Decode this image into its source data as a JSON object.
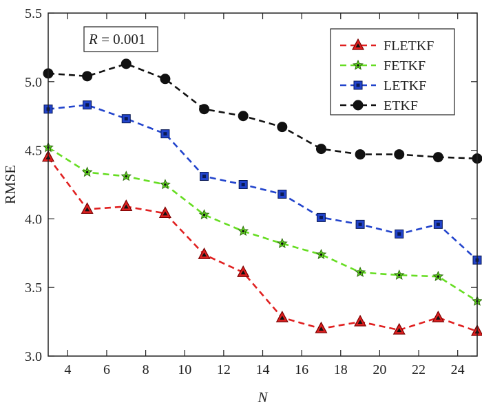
{
  "chart_data": {
    "type": "line",
    "xlabel": "N",
    "ylabel": "RMSE",
    "xlim": [
      3,
      25
    ],
    "ylim": [
      3.0,
      5.5
    ],
    "xticks": [
      4,
      6,
      8,
      10,
      12,
      14,
      16,
      18,
      20,
      22,
      24
    ],
    "yticks": [
      3.0,
      3.5,
      4.0,
      4.5,
      5.0,
      5.5
    ],
    "ytick_labels": [
      "3.0",
      "3.5",
      "4.0",
      "4.5",
      "5.0",
      "5.5"
    ],
    "annotation": {
      "var": "R",
      "eq": " = 0.001"
    },
    "legend_position": "top-right",
    "x": [
      3,
      5,
      7,
      9,
      11,
      13,
      15,
      17,
      19,
      21,
      23,
      25
    ],
    "series": [
      {
        "name": "FLETKF",
        "color": "#e02020",
        "marker": "triangle",
        "values": [
          4.45,
          4.07,
          4.09,
          4.04,
          3.74,
          3.61,
          3.28,
          3.2,
          3.25,
          3.19,
          3.28,
          3.18
        ]
      },
      {
        "name": "FETKF",
        "color": "#66dd22",
        "marker": "star",
        "values": [
          4.52,
          4.34,
          4.31,
          4.25,
          4.03,
          3.91,
          3.82,
          3.74,
          3.61,
          3.59,
          3.58,
          3.4
        ]
      },
      {
        "name": "LETKF",
        "color": "#2244cc",
        "marker": "square",
        "values": [
          4.8,
          4.83,
          4.73,
          4.62,
          4.31,
          4.25,
          4.18,
          4.01,
          3.96,
          3.89,
          3.96,
          3.7
        ]
      },
      {
        "name": "ETKF",
        "color": "#111111",
        "marker": "circle",
        "values": [
          5.06,
          5.04,
          5.13,
          5.02,
          4.8,
          4.75,
          4.67,
          4.51,
          4.47,
          4.47,
          4.45,
          4.44
        ]
      }
    ]
  }
}
